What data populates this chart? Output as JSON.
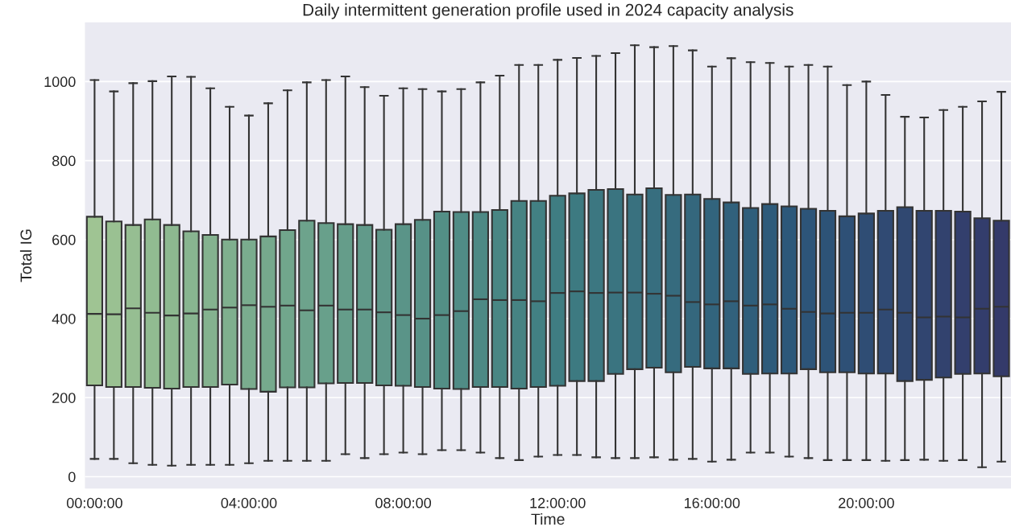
{
  "chart_data": {
    "type": "box",
    "title": "Daily intermittent generation profile used in 2024 capacity analysis",
    "xlabel": "Time",
    "ylabel": "Total IG",
    "categories": [
      "00:00:00",
      null,
      null,
      null,
      null,
      null,
      null,
      null,
      "04:00:00",
      null,
      null,
      null,
      null,
      null,
      null,
      null,
      "08:00:00",
      null,
      null,
      null,
      null,
      null,
      null,
      null,
      "12:00:00",
      null,
      null,
      null,
      null,
      null,
      null,
      null,
      "16:00:00",
      null,
      null,
      null,
      null,
      null,
      null,
      null,
      "20:00:00",
      null,
      null,
      null,
      null,
      null,
      null,
      null
    ],
    "boxes": [
      {
        "low": 45,
        "q1": 231,
        "median": 412,
        "q3": 658,
        "high": 1004
      },
      {
        "low": 45,
        "q1": 227,
        "median": 411,
        "q3": 646,
        "high": 975
      },
      {
        "low": 34,
        "q1": 227,
        "median": 426,
        "q3": 637,
        "high": 996
      },
      {
        "low": 30,
        "q1": 225,
        "median": 415,
        "q3": 651,
        "high": 1001
      },
      {
        "low": 28,
        "q1": 223,
        "median": 408,
        "q3": 637,
        "high": 1013
      },
      {
        "low": 30,
        "q1": 227,
        "median": 413,
        "q3": 621,
        "high": 1012
      },
      {
        "low": 30,
        "q1": 227,
        "median": 423,
        "q3": 612,
        "high": 983
      },
      {
        "low": 30,
        "q1": 233,
        "median": 428,
        "q3": 600,
        "high": 936
      },
      {
        "low": 34,
        "q1": 222,
        "median": 434,
        "q3": 600,
        "high": 914
      },
      {
        "low": 40,
        "q1": 215,
        "median": 430,
        "q3": 608,
        "high": 945
      },
      {
        "low": 40,
        "q1": 226,
        "median": 433,
        "q3": 624,
        "high": 978
      },
      {
        "low": 40,
        "q1": 226,
        "median": 421,
        "q3": 648,
        "high": 998
      },
      {
        "low": 40,
        "q1": 236,
        "median": 433,
        "q3": 642,
        "high": 1004
      },
      {
        "low": 57,
        "q1": 237,
        "median": 423,
        "q3": 639,
        "high": 1013
      },
      {
        "low": 47,
        "q1": 237,
        "median": 423,
        "q3": 637,
        "high": 986
      },
      {
        "low": 57,
        "q1": 231,
        "median": 416,
        "q3": 625,
        "high": 964
      },
      {
        "low": 61,
        "q1": 230,
        "median": 409,
        "q3": 639,
        "high": 983
      },
      {
        "low": 57,
        "q1": 227,
        "median": 400,
        "q3": 650,
        "high": 981
      },
      {
        "low": 67,
        "q1": 223,
        "median": 409,
        "q3": 671,
        "high": 975
      },
      {
        "low": 67,
        "q1": 222,
        "median": 419,
        "q3": 670,
        "high": 981
      },
      {
        "low": 61,
        "q1": 227,
        "median": 449,
        "q3": 670,
        "high": 998
      },
      {
        "low": 47,
        "q1": 227,
        "median": 447,
        "q3": 675,
        "high": 1015
      },
      {
        "low": 42,
        "q1": 223,
        "median": 447,
        "q3": 698,
        "high": 1042
      },
      {
        "low": 51,
        "q1": 227,
        "median": 444,
        "q3": 698,
        "high": 1042
      },
      {
        "low": 55,
        "q1": 230,
        "median": 465,
        "q3": 711,
        "high": 1055
      },
      {
        "low": 55,
        "q1": 242,
        "median": 469,
        "q3": 717,
        "high": 1060
      },
      {
        "low": 49,
        "q1": 242,
        "median": 465,
        "q3": 726,
        "high": 1065
      },
      {
        "low": 47,
        "q1": 260,
        "median": 466,
        "q3": 728,
        "high": 1072
      },
      {
        "low": 47,
        "q1": 272,
        "median": 466,
        "q3": 714,
        "high": 1092
      },
      {
        "low": 49,
        "q1": 276,
        "median": 463,
        "q3": 730,
        "high": 1087
      },
      {
        "low": 43,
        "q1": 264,
        "median": 458,
        "q3": 713,
        "high": 1090
      },
      {
        "low": 45,
        "q1": 278,
        "median": 442,
        "q3": 714,
        "high": 1079
      },
      {
        "low": 38,
        "q1": 274,
        "median": 436,
        "q3": 703,
        "high": 1038
      },
      {
        "low": 43,
        "q1": 274,
        "median": 444,
        "q3": 694,
        "high": 1059
      },
      {
        "low": 61,
        "q1": 260,
        "median": 433,
        "q3": 680,
        "high": 1049
      },
      {
        "low": 61,
        "q1": 261,
        "median": 436,
        "q3": 690,
        "high": 1047
      },
      {
        "low": 51,
        "q1": 261,
        "median": 425,
        "q3": 684,
        "high": 1038
      },
      {
        "low": 47,
        "q1": 272,
        "median": 417,
        "q3": 678,
        "high": 1042
      },
      {
        "low": 42,
        "q1": 264,
        "median": 413,
        "q3": 673,
        "high": 1038
      },
      {
        "low": 42,
        "q1": 264,
        "median": 415,
        "q3": 659,
        "high": 991
      },
      {
        "low": 42,
        "q1": 261,
        "median": 415,
        "q3": 666,
        "high": 1000
      },
      {
        "low": 40,
        "q1": 261,
        "median": 423,
        "q3": 673,
        "high": 966
      },
      {
        "low": 42,
        "q1": 242,
        "median": 415,
        "q3": 682,
        "high": 911
      },
      {
        "low": 43,
        "q1": 245,
        "median": 403,
        "q3": 673,
        "high": 909
      },
      {
        "low": 40,
        "q1": 251,
        "median": 405,
        "q3": 673,
        "high": 928
      },
      {
        "low": 42,
        "q1": 260,
        "median": 403,
        "q3": 671,
        "high": 936
      },
      {
        "low": 24,
        "q1": 261,
        "median": 425,
        "q3": 654,
        "high": 950
      },
      {
        "low": 38,
        "q1": 254,
        "median": 430,
        "q3": 648,
        "high": 974
      }
    ],
    "colors": [
      "#9fc493",
      "#9ac192",
      "#96be92",
      "#91bb91",
      "#8db890",
      "#88b590",
      "#84b28f",
      "#7faf8e",
      "#7aac8e",
      "#76a98d",
      "#71a68c",
      "#6da38c",
      "#68a08b",
      "#659d8a",
      "#619a8a",
      "#5e9789",
      "#5a9488",
      "#579187",
      "#538f86",
      "#508c86",
      "#4d8985",
      "#498684",
      "#468383",
      "#428083",
      "#3f7d82",
      "#3d7a81",
      "#3c7781",
      "#3a7480",
      "#39717f",
      "#376e7f",
      "#366b7e",
      "#34677d",
      "#32647d",
      "#31617c",
      "#2f5e7b",
      "#2e5b7b",
      "#2c587a",
      "#2d5579",
      "#2d5377",
      "#2e5076",
      "#2f4d74",
      "#304a73",
      "#304871",
      "#314570",
      "#32426e",
      "#333f6d",
      "#333d6c",
      "#343a6a"
    ],
    "ylim": [
      -30,
      1150
    ],
    "yticks": [
      0,
      200,
      400,
      600,
      800,
      1000
    ],
    "grid": "y"
  }
}
